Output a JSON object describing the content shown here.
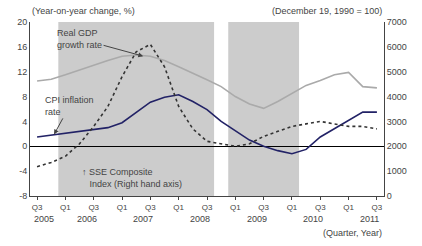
{
  "chart_data": {
    "type": "line",
    "ylabel": "(Year-on-year change, %)",
    "y2label": "(December 19, 1990 = 100)",
    "xlabel": "(Quarter, Year)",
    "categories": [
      "Q3",
      null,
      "Q1",
      null,
      "Q3",
      null,
      "Q1",
      null,
      "Q3",
      null,
      "Q1",
      null,
      "Q3",
      null,
      "Q1",
      null,
      "Q3",
      null,
      "Q1",
      null,
      "Q3",
      null,
      "Q1",
      null,
      "Q3"
    ],
    "year_labels": [
      "2005",
      "2006",
      "2007",
      "2008",
      "2009",
      "2010",
      "2011"
    ],
    "annotations": [
      "Real GDP\ngrowth rate",
      "CPI inflation\nrate",
      "↑ SSE Composite\n   Index (Right hand axis)"
    ],
    "series": [
      {
        "color": "#aaaaaa",
        "line_style": "solid",
        "values": [
          10.5,
          10.8,
          11.5,
          12.3,
          13.0,
          13.8,
          14.5,
          14.7,
          14.5,
          13.8,
          12.8,
          11.8,
          10.7,
          9.6,
          8.0,
          6.8,
          6.1,
          7.2,
          8.5,
          9.8,
          10.6,
          11.5,
          11.9,
          9.6,
          9.4
        ]
      },
      {
        "color": "#222266",
        "line_style": "solid",
        "values": [
          1.5,
          1.8,
          2.0,
          2.4,
          2.7,
          3.0,
          3.8,
          5.5,
          7.1,
          7.9,
          8.3,
          7.2,
          5.9,
          4.0,
          2.5,
          1.0,
          0.0,
          -0.7,
          -1.2,
          -0.5,
          1.5,
          2.8,
          4.2,
          5.5,
          5.5
        ]
      },
      {
        "color": "#333333",
        "line_style": "dotted",
        "axis": "y2",
        "values": [
          1180,
          1350,
          1600,
          2100,
          2800,
          3600,
          4800,
          5800,
          6100,
          5200,
          3600,
          2700,
          2200,
          2100,
          2000,
          2100,
          2400,
          2600,
          2800,
          2900,
          3000,
          2900,
          2800,
          2800,
          2700
        ]
      }
    ],
    "shaded_ranges": [
      [
        2,
        12
      ],
      [
        14,
        18
      ]
    ],
    "shaded_color": "#cccccc",
    "ylim": [
      -8,
      20
    ],
    "yticks": [
      -8,
      -4,
      0,
      4,
      8,
      12,
      16,
      20
    ],
    "y2lim": [
      0,
      7000
    ],
    "y2ticks": [
      0,
      1000,
      2000,
      3000,
      4000,
      5000,
      6000,
      7000
    ],
    "grid": false
  }
}
